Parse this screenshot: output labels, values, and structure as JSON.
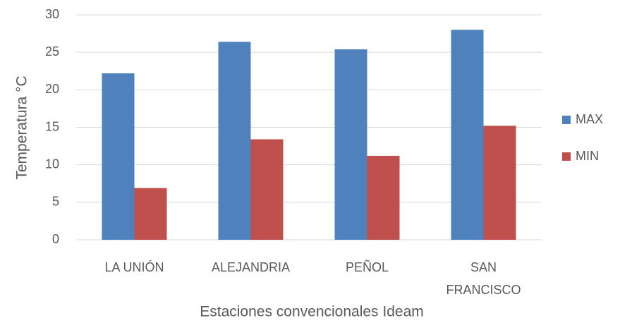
{
  "chart_data": {
    "type": "bar",
    "x_label": "Estaciones convencionales Ideam",
    "y_label": "Temperatura °C",
    "categories": [
      "LA UNIÓN",
      "ALEJANDRIA",
      "PEÑOL",
      "SAN FRANCISCO"
    ],
    "series": [
      {
        "name": "MAX",
        "color": "#4f81bd",
        "values": [
          22.2,
          26.4,
          25.4,
          28.0
        ]
      },
      {
        "name": "MIN",
        "color": "#c0504d",
        "values": [
          6.9,
          13.4,
          11.2,
          15.2
        ]
      }
    ],
    "ylim": [
      0,
      30
    ],
    "yticks": [
      0,
      5,
      10,
      15,
      20,
      25,
      30
    ],
    "grid": true,
    "legend": "right"
  }
}
